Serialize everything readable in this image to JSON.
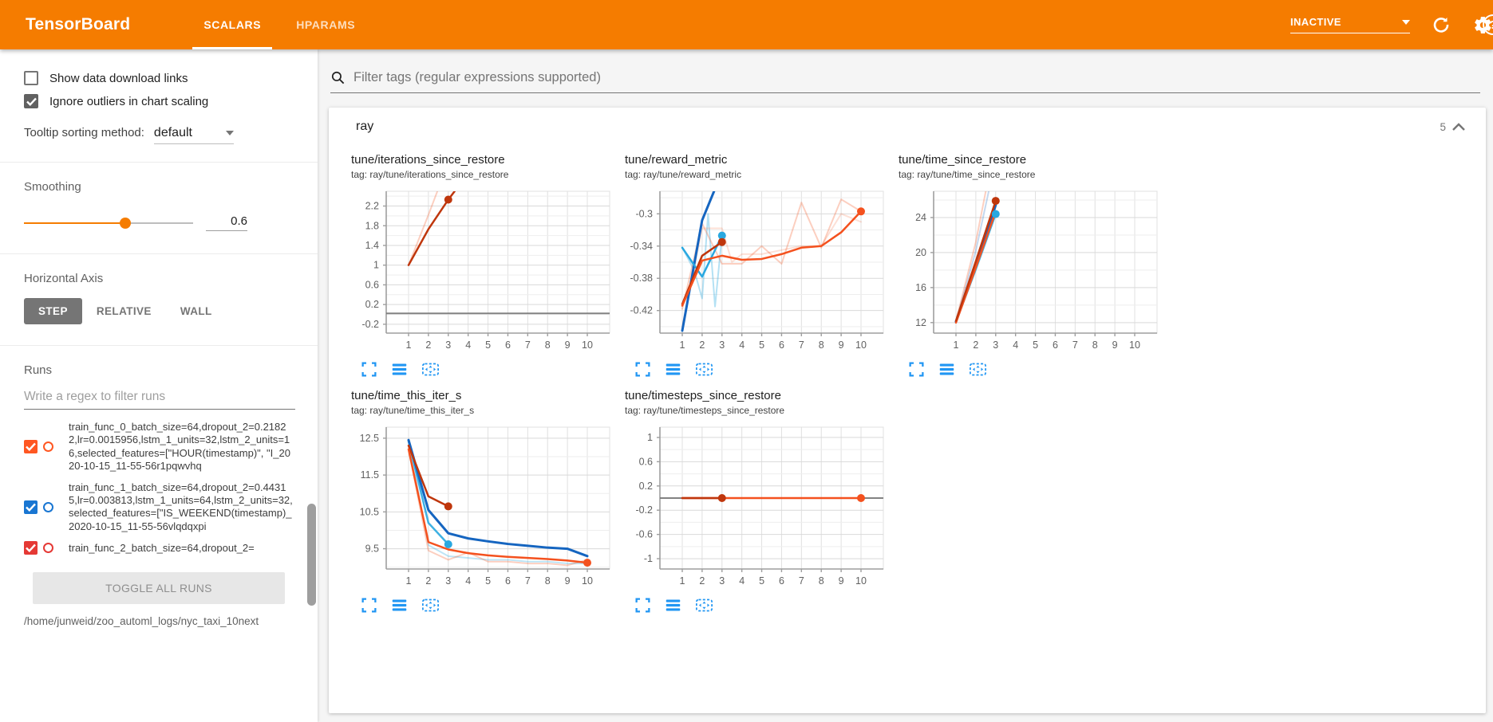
{
  "colors": {
    "accent": "#f57c00",
    "orange": "#f4511e",
    "darkred": "#bf360c",
    "darkblue": "#1565c0",
    "cyan": "#29a8e0",
    "gray": "#757575",
    "icon_blue": "#2196f3"
  },
  "header": {
    "logo": "TensorBoard",
    "tabs": [
      {
        "label": "SCALARS",
        "active": true
      },
      {
        "label": "HPARAMS",
        "active": false
      }
    ],
    "reload_status": "INACTIVE",
    "help_glyph": "?"
  },
  "sidebar": {
    "checkboxes": [
      {
        "label": "Show data download links",
        "checked": false
      },
      {
        "label": "Ignore outliers in chart scaling",
        "checked": true
      }
    ],
    "tooltip_sorting": {
      "label": "Tooltip sorting method:",
      "value": "default"
    },
    "smoothing": {
      "label": "Smoothing",
      "value": "0.6",
      "percent": 60
    },
    "horizontal_axis": {
      "label": "Horizontal Axis",
      "options": [
        "STEP",
        "RELATIVE",
        "WALL"
      ],
      "selected": "STEP"
    },
    "runs": {
      "label": "Runs",
      "filter_placeholder": "Write a regex to filter runs",
      "items": [
        {
          "name": "train_func_0_batch_size=64,dropout_2=0.21822,lr=0.0015956,lstm_1_units=32,lstm_2_units=16,selected_features=[\"HOUR(timestamp)\", \"I_2020-10-15_11-55-56r1pqwvhq",
          "checked": true,
          "color": "#ff5722"
        },
        {
          "name": "train_func_1_batch_size=64,dropout_2=0.44315,lr=0.003813,lstm_1_units=64,lstm_2_units=32,selected_features=[\"IS_WEEKEND(timestamp)_2020-10-15_11-55-56vlqdqxpi",
          "checked": true,
          "color": "#1976d2"
        },
        {
          "name": "train_func_2_batch_size=64,dropout_2=",
          "checked": true,
          "color": "#e53935"
        }
      ],
      "toggle_button": "TOGGLE ALL RUNS",
      "log_path": "/home/junweid/zoo_automl_logs/nyc_taxi_10next"
    }
  },
  "main": {
    "filter_placeholder": "Filter tags (regular expressions supported)",
    "card": {
      "title": "ray",
      "count": "5"
    }
  },
  "chart_data": [
    {
      "type": "line",
      "title": "tune/iterations_since_restore",
      "tag": "tag: ray/tune/iterations_since_restore",
      "x_ticks": [
        "1",
        "2",
        "3",
        "4",
        "5",
        "6",
        "7",
        "8",
        "9",
        "10"
      ],
      "y_ticks": [
        "2.2",
        "1.8",
        "1.4",
        "1",
        "0.6",
        "0.2",
        "-0.2"
      ],
      "ylim": [
        -0.38,
        2.5
      ],
      "series": [
        {
          "name": "run0-raw",
          "color": "#f4511e",
          "opacity": 0.28,
          "width": 2,
          "points": [
            [
              1,
              1
            ],
            [
              2,
              2.02
            ],
            [
              2.45,
              2.5
            ]
          ]
        },
        {
          "name": "gray-flat-run",
          "color": "#757575",
          "opacity": 0.9,
          "width": 2,
          "points": [
            [
              -0.1,
              0.02
            ],
            [
              11.1,
              0.02
            ]
          ]
        },
        {
          "name": "run0-smoothed",
          "color": "#bf360c",
          "opacity": 1,
          "width": 2.5,
          "points": [
            [
              1,
              1
            ],
            [
              2,
              1.73
            ],
            [
              3,
              2.33
            ],
            [
              3.32,
              2.5
            ]
          ],
          "dot": [
            3,
            2.33
          ]
        }
      ]
    },
    {
      "type": "line",
      "title": "tune/reward_metric",
      "tag": "tag: ray/tune/reward_metric",
      "x_ticks": [
        "1",
        "2",
        "3",
        "4",
        "5",
        "6",
        "7",
        "8",
        "9",
        "10"
      ],
      "y_ticks": [
        "-0.3",
        "-0.34",
        "-0.38",
        "-0.42"
      ],
      "ylim": [
        -0.448,
        -0.272
      ],
      "series": [
        {
          "name": "run-lightblue-raw",
          "color": "#29a8e0",
          "opacity": 0.35,
          "width": 2,
          "points": [
            [
              1,
              -0.342
            ],
            [
              1.6,
              -0.37
            ],
            [
              2,
              -0.405
            ],
            [
              2.3,
              -0.3
            ],
            [
              2.65,
              -0.415
            ],
            [
              3,
              -0.327
            ]
          ]
        },
        {
          "name": "run-orange-raw-a",
          "color": "#f4511e",
          "opacity": 0.28,
          "width": 2,
          "points": [
            [
              1,
              -0.418
            ],
            [
              2,
              -0.312
            ],
            [
              3,
              -0.362
            ],
            [
              4,
              -0.362
            ],
            [
              5,
              -0.34
            ],
            [
              6,
              -0.362
            ],
            [
              7,
              -0.286
            ],
            [
              8,
              -0.342
            ],
            [
              9,
              -0.282
            ],
            [
              10,
              -0.297
            ]
          ]
        },
        {
          "name": "run-orange-raw-b",
          "color": "#f4511e",
          "opacity": 0.18,
          "width": 2,
          "points": [
            [
              1,
              -0.44
            ],
            [
              2,
              -0.318
            ],
            [
              3,
              -0.318
            ],
            [
              3.5,
              -0.36
            ],
            [
              4,
              -0.35
            ],
            [
              5,
              -0.35
            ],
            [
              6,
              -0.345
            ],
            [
              7,
              -0.34
            ],
            [
              8,
              -0.34
            ],
            [
              9,
              -0.3
            ],
            [
              10,
              -0.31
            ]
          ]
        },
        {
          "name": "run-darkblue-smoothed",
          "color": "#1565c0",
          "opacity": 1,
          "width": 3,
          "points": [
            [
              1,
              -0.445
            ],
            [
              2,
              -0.308
            ],
            [
              2.6,
              -0.272
            ]
          ]
        },
        {
          "name": "run-cyan-smoothed",
          "color": "#29a8e0",
          "opacity": 1,
          "width": 2.5,
          "points": [
            [
              1,
              -0.342
            ],
            [
              2,
              -0.378
            ],
            [
              3,
              -0.327
            ]
          ],
          "dot": [
            3,
            -0.327
          ]
        },
        {
          "name": "run-darkred-smoothed",
          "color": "#bf360c",
          "opacity": 1,
          "width": 2.5,
          "points": [
            [
              1,
              -0.412
            ],
            [
              2,
              -0.352
            ],
            [
              3,
              -0.335
            ]
          ],
          "dot": [
            3,
            -0.335
          ]
        },
        {
          "name": "run-orange-smoothed",
          "color": "#f4511e",
          "opacity": 1,
          "width": 2.5,
          "points": [
            [
              1,
              -0.414
            ],
            [
              2,
              -0.358
            ],
            [
              3,
              -0.352
            ],
            [
              4,
              -0.357
            ],
            [
              5,
              -0.356
            ],
            [
              6,
              -0.35
            ],
            [
              7,
              -0.342
            ],
            [
              8,
              -0.34
            ],
            [
              9,
              -0.323
            ],
            [
              10,
              -0.297
            ]
          ],
          "dot": [
            10,
            -0.297
          ]
        }
      ]
    },
    {
      "type": "line",
      "title": "tune/time_since_restore",
      "tag": "tag: ray/tune/time_since_restore",
      "x_ticks": [
        "1",
        "2",
        "3",
        "4",
        "5",
        "6",
        "7",
        "8",
        "9",
        "10"
      ],
      "y_ticks": [
        "24",
        "20",
        "16",
        "12"
      ],
      "ylim": [
        10.8,
        27.0
      ],
      "series": [
        {
          "name": "run-orange-raw",
          "color": "#f4511e",
          "opacity": 0.28,
          "width": 2,
          "points": [
            [
              1,
              12.2
            ],
            [
              2,
              21.2
            ],
            [
              2.5,
              27
            ]
          ]
        },
        {
          "name": "run-lightblue-raw",
          "color": "#1565c0",
          "opacity": 0.25,
          "width": 2,
          "points": [
            [
              1,
              12.1
            ],
            [
              2,
              20.2
            ],
            [
              2.65,
              27
            ]
          ]
        },
        {
          "name": "run-cyan-smoothed",
          "color": "#29a8e0",
          "opacity": 0.9,
          "width": 2.5,
          "points": [
            [
              1,
              12.1
            ],
            [
              2,
              18.1
            ],
            [
              3,
              24.4
            ]
          ],
          "dot": [
            3,
            24.4
          ]
        },
        {
          "name": "run-darkblue-smoothed",
          "color": "#1565c0",
          "opacity": 1,
          "width": 3,
          "points": [
            [
              1,
              12.1
            ],
            [
              2,
              18.7
            ],
            [
              3,
              25.4
            ]
          ]
        },
        {
          "name": "run-orange-smoothed",
          "color": "#f4511e",
          "opacity": 1,
          "width": 2.5,
          "points": [
            [
              1,
              12.0
            ],
            [
              2,
              18.3
            ],
            [
              3,
              24.7
            ]
          ]
        },
        {
          "name": "run-darkred-smoothed",
          "color": "#bf360c",
          "opacity": 1,
          "width": 2.5,
          "points": [
            [
              1,
              12.2
            ],
            [
              2,
              19.0
            ],
            [
              3,
              25.9
            ]
          ],
          "dot": [
            3,
            25.9
          ]
        }
      ]
    },
    {
      "type": "line",
      "title": "tune/time_this_iter_s",
      "tag": "tag: ray/tune/time_this_iter_s",
      "x_ticks": [
        "1",
        "2",
        "3",
        "4",
        "5",
        "6",
        "7",
        "8",
        "9",
        "10"
      ],
      "y_ticks": [
        "12.5",
        "11.5",
        "10.5",
        "9.5"
      ],
      "ylim": [
        8.95,
        12.8
      ],
      "series": [
        {
          "name": "run-lightblue-raw",
          "color": "#29a8e0",
          "opacity": 0.3,
          "width": 2,
          "points": [
            [
              1,
              12.42
            ],
            [
              2,
              9.6
            ],
            [
              3,
              9.3
            ],
            [
              4,
              9.25
            ],
            [
              5,
              9.2
            ],
            [
              6,
              9.2
            ],
            [
              7,
              9.15
            ],
            [
              8,
              9.15
            ],
            [
              9,
              9.1
            ],
            [
              10,
              9.1
            ]
          ]
        },
        {
          "name": "run-orange-raw",
          "color": "#f4511e",
          "opacity": 0.28,
          "width": 2,
          "points": [
            [
              1,
              12.2
            ],
            [
              2,
              9.45
            ],
            [
              3,
              9.2
            ],
            [
              4,
              9.4
            ],
            [
              5,
              9.15
            ],
            [
              6,
              9.15
            ],
            [
              7,
              9.1
            ],
            [
              8,
              9.1
            ],
            [
              9,
              9.05
            ],
            [
              10,
              9.2
            ]
          ]
        },
        {
          "name": "run-cyan-smoothed",
          "color": "#29a8e0",
          "opacity": 0.9,
          "width": 2.5,
          "points": [
            [
              1,
              12.42
            ],
            [
              2,
              10.2
            ],
            [
              3,
              9.62
            ]
          ],
          "dot": [
            3,
            9.62
          ]
        },
        {
          "name": "run-darkblue-smoothed",
          "color": "#1565c0",
          "opacity": 1,
          "width": 3,
          "points": [
            [
              1,
              12.45
            ],
            [
              2,
              10.55
            ],
            [
              3,
              9.92
            ],
            [
              4,
              9.78
            ],
            [
              5,
              9.7
            ],
            [
              6,
              9.63
            ],
            [
              7,
              9.58
            ],
            [
              8,
              9.53
            ],
            [
              9,
              9.5
            ],
            [
              10,
              9.3
            ]
          ]
        },
        {
          "name": "run-darkred-smoothed",
          "color": "#bf360c",
          "opacity": 1,
          "width": 2.5,
          "points": [
            [
              1,
              12.3
            ],
            [
              2,
              10.92
            ],
            [
              3,
              10.65
            ]
          ],
          "dot": [
            3,
            10.65
          ]
        },
        {
          "name": "run-orange-smoothed",
          "color": "#f4511e",
          "opacity": 1,
          "width": 2.5,
          "points": [
            [
              1,
              12.2
            ],
            [
              2,
              9.68
            ],
            [
              3,
              9.48
            ],
            [
              4,
              9.38
            ],
            [
              5,
              9.32
            ],
            [
              6,
              9.28
            ],
            [
              7,
              9.25
            ],
            [
              8,
              9.22
            ],
            [
              9,
              9.18
            ],
            [
              10,
              9.12
            ]
          ],
          "dot": [
            10,
            9.12
          ]
        }
      ]
    },
    {
      "type": "line",
      "title": "tune/timesteps_since_restore",
      "tag": "tag: ray/tune/timesteps_since_restore",
      "x_ticks": [
        "1",
        "2",
        "3",
        "4",
        "5",
        "6",
        "7",
        "8",
        "9",
        "10"
      ],
      "y_ticks": [
        "1",
        "0.6",
        "0.2",
        "-0.2",
        "-0.6",
        "-1"
      ],
      "ylim": [
        -1.17,
        1.17
      ],
      "series": [
        {
          "name": "gray-flat-run",
          "color": "#757575",
          "opacity": 0.9,
          "width": 2,
          "points": [
            [
              -0.1,
              0
            ],
            [
              11.1,
              0
            ]
          ]
        },
        {
          "name": "run-orange-smoothed",
          "color": "#f4511e",
          "opacity": 1,
          "width": 2.5,
          "points": [
            [
              1,
              0
            ],
            [
              10,
              0
            ]
          ],
          "dot": [
            10,
            0
          ]
        },
        {
          "name": "run-darkred-smoothed",
          "color": "#bf360c",
          "opacity": 1,
          "width": 2.5,
          "points": [
            [
              1,
              0
            ],
            [
              3,
              0
            ]
          ],
          "dot": [
            3,
            0
          ]
        }
      ]
    }
  ]
}
